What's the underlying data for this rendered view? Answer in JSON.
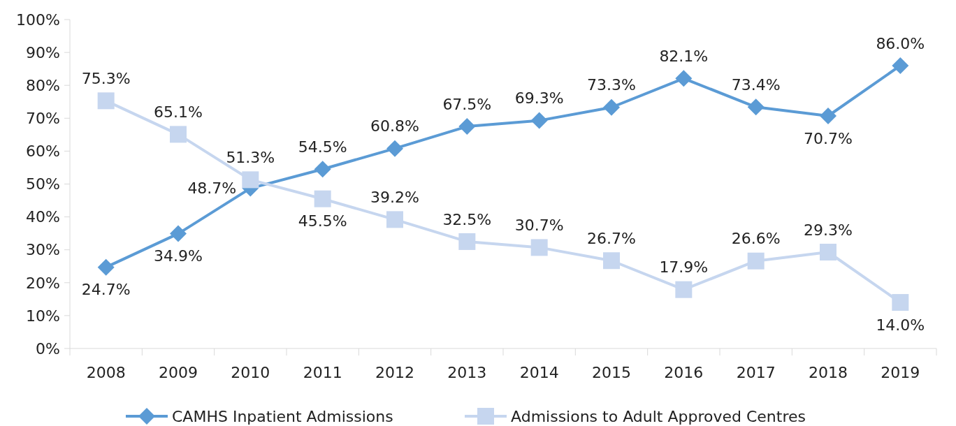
{
  "chart_data": {
    "type": "line",
    "categories": [
      "2008",
      "2009",
      "2010",
      "2011",
      "2012",
      "2013",
      "2014",
      "2015",
      "2016",
      "2017",
      "2018",
      "2019"
    ],
    "series": [
      {
        "name": "CAMHS Inpatient Admissions",
        "color": "#5b9bd5",
        "marker": "diamond",
        "values": [
          24.7,
          34.9,
          48.7,
          54.5,
          60.8,
          67.5,
          69.3,
          73.3,
          82.1,
          73.4,
          70.7,
          86.0
        ],
        "value_labels": [
          "24.7%",
          "34.9%",
          "48.7%",
          "54.5%",
          "60.8%",
          "67.5%",
          "69.3%",
          "73.3%",
          "82.1%",
          "73.4%",
          "70.7%",
          "86.0%"
        ]
      },
      {
        "name": "Admissions to Adult Approved Centres",
        "color": "#c6d6ef",
        "marker": "square",
        "values": [
          75.3,
          65.1,
          51.3,
          45.5,
          39.2,
          32.5,
          30.7,
          26.7,
          17.9,
          26.6,
          29.3,
          14.0
        ],
        "value_labels": [
          "75.3%",
          "65.1%",
          "51.3%",
          "45.5%",
          "39.2%",
          "32.5%",
          "30.7%",
          "26.7%",
          "17.9%",
          "26.6%",
          "29.3%",
          "14.0%"
        ]
      }
    ],
    "ylim": [
      0,
      100
    ],
    "yticks": [
      {
        "value": 0,
        "label": "0%"
      },
      {
        "value": 10,
        "label": "10%"
      },
      {
        "value": 20,
        "label": "20%"
      },
      {
        "value": 30,
        "label": "30%"
      },
      {
        "value": 40,
        "label": "40%"
      },
      {
        "value": 50,
        "label": "50%"
      },
      {
        "value": 60,
        "label": "60%"
      },
      {
        "value": 70,
        "label": "70%"
      },
      {
        "value": 80,
        "label": "80%"
      },
      {
        "value": 90,
        "label": "90%"
      },
      {
        "value": 100,
        "label": "100%"
      }
    ],
    "grid": false,
    "legend": "bottom",
    "line_style": "solid"
  }
}
